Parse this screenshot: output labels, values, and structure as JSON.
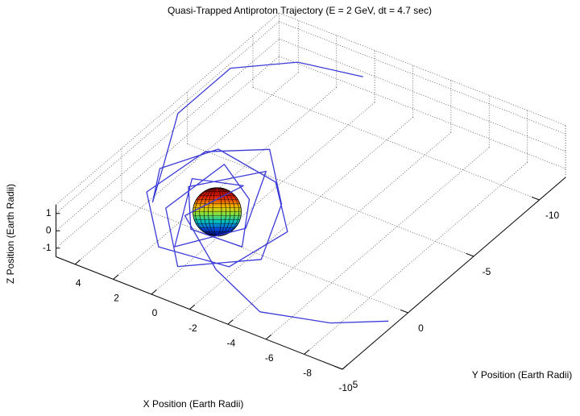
{
  "chart_data": {
    "type": "line3d",
    "title": "Quasi-Trapped Antiproton Trajectory (E = 2 GeV, dt = 4.7 sec)",
    "xlabel": "X Position (Earth Radii)",
    "ylabel": "Y Position (Earth Radii)",
    "zlabel": "Z Position (Earth Radii)",
    "color": "#3a3ad8",
    "x": [
      0.4,
      3,
      4.8,
      4.8,
      3.5,
      2,
      3,
      2,
      -1,
      -3,
      -2,
      1,
      3,
      2,
      0,
      -2,
      -3,
      0,
      2,
      1,
      -1,
      -2,
      0,
      1.5,
      -0.5,
      -1.5,
      0.5,
      2,
      0,
      1,
      -2,
      -5,
      -8,
      -10
    ],
    "y": [
      -11.7,
      -10.5,
      -8,
      -4,
      -1,
      2,
      0,
      -3,
      -3,
      -1,
      2,
      3,
      1,
      -2,
      -4,
      -2,
      1,
      3,
      1,
      -2,
      -1,
      1,
      2,
      0,
      -3,
      0,
      2.5,
      -1,
      -2,
      1,
      3,
      4,
      3,
      1.5
    ],
    "z": [
      0,
      0.5,
      1,
      1,
      0.5,
      1,
      1.2,
      0.8,
      0.2,
      -0.5,
      -1,
      -0.5,
      0.5,
      1.3,
      1,
      0,
      -0.8,
      -1.2,
      0,
      1,
      0.5,
      -0.5,
      0.3,
      0.8,
      0.6,
      -0.3,
      -0.6,
      0.4,
      0.2,
      0,
      -0.5,
      -1,
      -1,
      -1
    ],
    "xlim": [
      -10,
      5
    ],
    "ylim": [
      -12,
      5
    ],
    "zlim": [
      -1.5,
      1.5
    ],
    "xticks": [
      4,
      2,
      0,
      -2,
      -4,
      -6,
      -8,
      -10
    ],
    "yticks": [
      -10,
      -5,
      0,
      5
    ],
    "zticks": [
      -1,
      0,
      1
    ],
    "grid": true
  }
}
